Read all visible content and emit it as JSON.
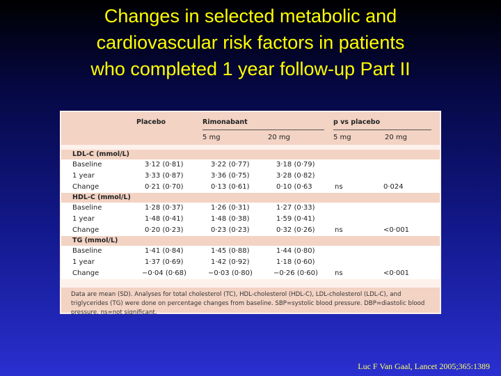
{
  "title_lines": [
    "Changes in selected metabolic and",
    "cardiovascular risk factors in patients",
    "who completed 1 year follow-up Part II"
  ],
  "table": {
    "header": {
      "placebo": "Placebo",
      "rimonabant": "Rimonabant",
      "pvs": "p vs placebo",
      "rimo_5": "5 mg",
      "rimo_20": "20 mg",
      "p_5": "5 mg",
      "p_20": "20 mg"
    },
    "sections": [
      {
        "label": "LDL-C (mmol/L)",
        "rows": [
          {
            "label": "Baseline",
            "placebo": "3·12 (0·81)",
            "r5": "3·22 (0·77)",
            "r20": "3·18 (0·79)",
            "p5": "",
            "p20": ""
          },
          {
            "label": "1 year",
            "placebo": "3·33 (0·87)",
            "r5": "3·36 (0·75)",
            "r20": "3·28 (0·82)",
            "p5": "",
            "p20": ""
          },
          {
            "label": "Change",
            "placebo": "0·21 (0·70)",
            "r5": "0·13 (0·61)",
            "r20": "0·10 (0·63",
            "p5": "ns",
            "p20": "0·024"
          }
        ]
      },
      {
        "label": "HDL-C (mmol/L)",
        "rows": [
          {
            "label": "Baseline",
            "placebo": "1·28 (0·37)",
            "r5": "1·26 (0·31)",
            "r20": "1·27 (0·33)",
            "p5": "",
            "p20": ""
          },
          {
            "label": "1 year",
            "placebo": "1·48 (0·41)",
            "r5": "1·48 (0·38)",
            "r20": "1·59 (0·41)",
            "p5": "",
            "p20": ""
          },
          {
            "label": "Change",
            "placebo": "0·20 (0·23)",
            "r5": "0·23 (0·23)",
            "r20": "0·32 (0·26)",
            "p5": "ns",
            "p20": "<0·001"
          }
        ]
      },
      {
        "label": "TG (mmol/L)",
        "rows": [
          {
            "label": "Baseline",
            "placebo": "1·41 (0·84)",
            "r5": "1·45 (0·88)",
            "r20": "1·44 (0·80)",
            "p5": "",
            "p20": ""
          },
          {
            "label": "1 year",
            "placebo": "1·37 (0·69)",
            "r5": "1·42 (0·92)",
            "r20": "1·18 (0·60)",
            "p5": "",
            "p20": ""
          },
          {
            "label": "Change",
            "placebo": "−0·04 (0·68)",
            "r5": "−0·03 (0·80)",
            "r20": "−0·26 (0·60)",
            "p5": "ns",
            "p20": "<0·001"
          }
        ]
      }
    ],
    "footnote": "Data are mean (SD). Analyses for total cholesterol (TC), HDL-cholesterol (HDL-C), LDL-cholesterol (LDL-C), and triglycerides (TG) were done on percentage changes from baseline. SBP=systolic blood pressure. DBP=diastolic blood pressure. ns=not significant."
  },
  "citation": "Luc F Van Gaal, Lancet 2005;365:1389"
}
